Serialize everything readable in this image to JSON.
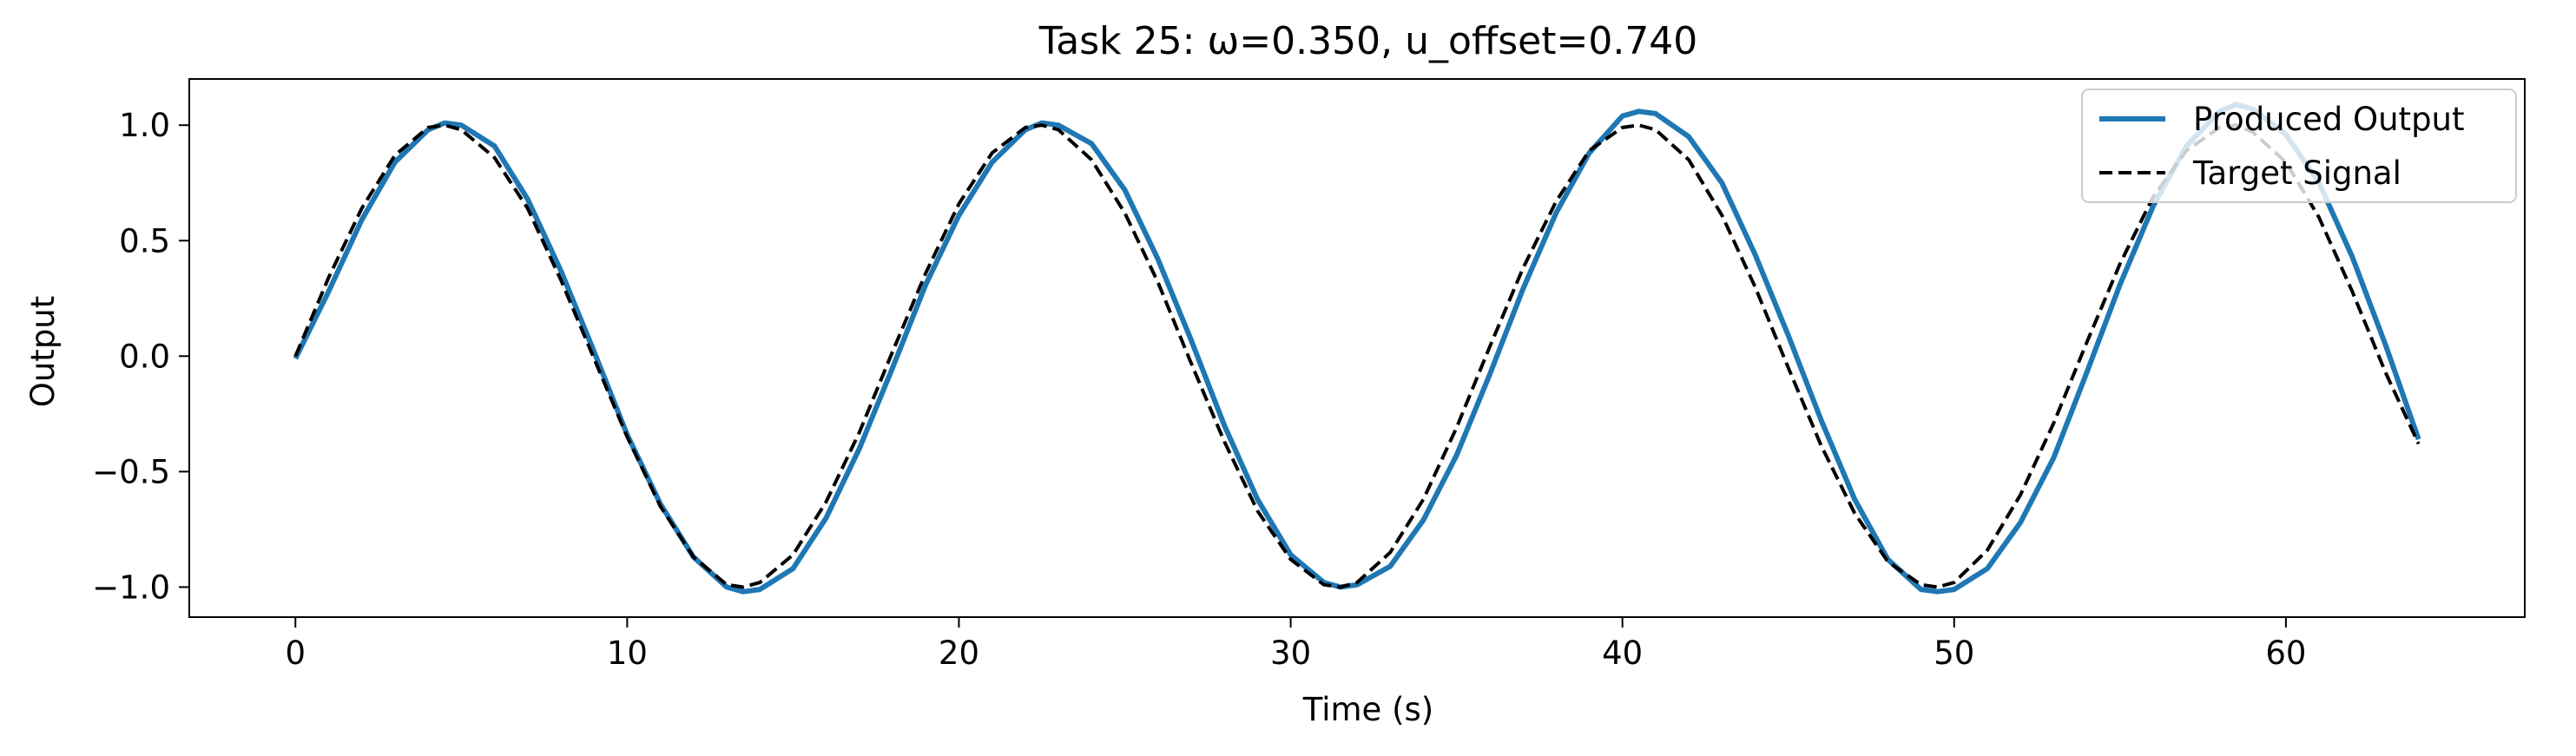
{
  "chart_data": {
    "type": "line",
    "title": "Task 25: ω=0.350, u_offset=0.740",
    "xlabel": "Time (s)",
    "ylabel": "Output",
    "xlim": [
      -3.2,
      67.2
    ],
    "ylim": [
      -1.13,
      1.2
    ],
    "x_ticks": [
      0,
      10,
      20,
      30,
      40,
      50,
      60
    ],
    "y_ticks": [
      -1.0,
      -0.5,
      0.0,
      0.5,
      1.0
    ],
    "x_tick_labels": [
      "0",
      "10",
      "20",
      "30",
      "40",
      "50",
      "60"
    ],
    "y_tick_labels": [
      "−1.0",
      "−0.5",
      "0.0",
      "0.5",
      "1.0"
    ],
    "grid": false,
    "legend_position": "upper right",
    "series": [
      {
        "name": "Produced Output",
        "color": "#1f77b4",
        "style": "solid",
        "points": [
          [
            0,
            -0.01
          ],
          [
            1,
            0.28
          ],
          [
            2,
            0.59
          ],
          [
            3,
            0.84
          ],
          [
            4,
            0.98
          ],
          [
            4.5,
            1.01
          ],
          [
            5,
            1.0
          ],
          [
            6,
            0.91
          ],
          [
            7,
            0.68
          ],
          [
            8,
            0.37
          ],
          [
            9,
            0.02
          ],
          [
            10,
            -0.34
          ],
          [
            11,
            -0.64
          ],
          [
            12,
            -0.87
          ],
          [
            13,
            -1.0
          ],
          [
            13.5,
            -1.02
          ],
          [
            14,
            -1.01
          ],
          [
            15,
            -0.92
          ],
          [
            16,
            -0.7
          ],
          [
            17,
            -0.4
          ],
          [
            18,
            -0.05
          ],
          [
            19,
            0.31
          ],
          [
            20,
            0.61
          ],
          [
            21,
            0.84
          ],
          [
            22,
            0.98
          ],
          [
            22.5,
            1.01
          ],
          [
            23,
            1.0
          ],
          [
            24,
            0.92
          ],
          [
            25,
            0.72
          ],
          [
            26,
            0.42
          ],
          [
            27,
            0.07
          ],
          [
            28,
            -0.3
          ],
          [
            29,
            -0.62
          ],
          [
            30,
            -0.86
          ],
          [
            31,
            -0.98
          ],
          [
            31.5,
            -1.0
          ],
          [
            32,
            -0.99
          ],
          [
            33,
            -0.91
          ],
          [
            34,
            -0.71
          ],
          [
            35,
            -0.43
          ],
          [
            36,
            -0.08
          ],
          [
            37,
            0.29
          ],
          [
            38,
            0.62
          ],
          [
            39,
            0.88
          ],
          [
            40,
            1.04
          ],
          [
            40.5,
            1.06
          ],
          [
            41,
            1.05
          ],
          [
            42,
            0.95
          ],
          [
            43,
            0.75
          ],
          [
            44,
            0.44
          ],
          [
            45,
            0.09
          ],
          [
            46,
            -0.28
          ],
          [
            47,
            -0.62
          ],
          [
            48,
            -0.88
          ],
          [
            49,
            -1.01
          ],
          [
            49.5,
            -1.02
          ],
          [
            50,
            -1.01
          ],
          [
            51,
            -0.92
          ],
          [
            52,
            -0.72
          ],
          [
            53,
            -0.44
          ],
          [
            54,
            -0.07
          ],
          [
            55,
            0.31
          ],
          [
            56,
            0.65
          ],
          [
            57,
            0.91
          ],
          [
            58,
            1.06
          ],
          [
            58.5,
            1.09
          ],
          [
            59,
            1.07
          ],
          [
            60,
            0.96
          ],
          [
            61,
            0.75
          ],
          [
            62,
            0.43
          ],
          [
            63,
            0.05
          ],
          [
            64,
            -0.36
          ]
        ]
      },
      {
        "name": "Target Signal",
        "color": "#000000",
        "style": "dashed",
        "points": [
          [
            0,
            0.0
          ],
          [
            1,
            0.34
          ],
          [
            2,
            0.64
          ],
          [
            3,
            0.87
          ],
          [
            4,
            0.99
          ],
          [
            4.5,
            1.0
          ],
          [
            5,
            0.98
          ],
          [
            6,
            0.86
          ],
          [
            7,
            0.64
          ],
          [
            8,
            0.33
          ],
          [
            9,
            -0.01
          ],
          [
            10,
            -0.35
          ],
          [
            11,
            -0.65
          ],
          [
            12,
            -0.87
          ],
          [
            13,
            -0.99
          ],
          [
            13.5,
            -1.0
          ],
          [
            14,
            -0.98
          ],
          [
            15,
            -0.86
          ],
          [
            16,
            -0.63
          ],
          [
            17,
            -0.33
          ],
          [
            18,
            0.02
          ],
          [
            19,
            0.36
          ],
          [
            20,
            0.66
          ],
          [
            21,
            0.88
          ],
          [
            22,
            0.99
          ],
          [
            22.5,
            1.0
          ],
          [
            23,
            0.98
          ],
          [
            24,
            0.85
          ],
          [
            25,
            0.62
          ],
          [
            26,
            0.32
          ],
          [
            27,
            -0.03
          ],
          [
            28,
            -0.37
          ],
          [
            29,
            -0.67
          ],
          [
            30,
            -0.88
          ],
          [
            31,
            -0.99
          ],
          [
            31.5,
            -1.0
          ],
          [
            32,
            -0.98
          ],
          [
            33,
            -0.85
          ],
          [
            34,
            -0.62
          ],
          [
            35,
            -0.31
          ],
          [
            36,
            0.04
          ],
          [
            37,
            0.38
          ],
          [
            38,
            0.67
          ],
          [
            39,
            0.89
          ],
          [
            40,
            0.99
          ],
          [
            40.5,
            1.0
          ],
          [
            41,
            0.98
          ],
          [
            42,
            0.85
          ],
          [
            43,
            0.61
          ],
          [
            44,
            0.3
          ],
          [
            45,
            -0.05
          ],
          [
            46,
            -0.39
          ],
          [
            47,
            -0.68
          ],
          [
            48,
            -0.89
          ],
          [
            49,
            -0.99
          ],
          [
            49.5,
            -1.0
          ],
          [
            50,
            -0.98
          ],
          [
            51,
            -0.84
          ],
          [
            52,
            -0.6
          ],
          [
            53,
            -0.29
          ],
          [
            54,
            0.06
          ],
          [
            55,
            0.4
          ],
          [
            56,
            0.69
          ],
          [
            57,
            0.89
          ],
          [
            58,
            0.99
          ],
          [
            58.5,
            1.0
          ],
          [
            59,
            0.97
          ],
          [
            60,
            0.84
          ],
          [
            61,
            0.6
          ],
          [
            62,
            0.28
          ],
          [
            63,
            -0.07
          ],
          [
            64,
            -0.38
          ]
        ]
      }
    ]
  }
}
